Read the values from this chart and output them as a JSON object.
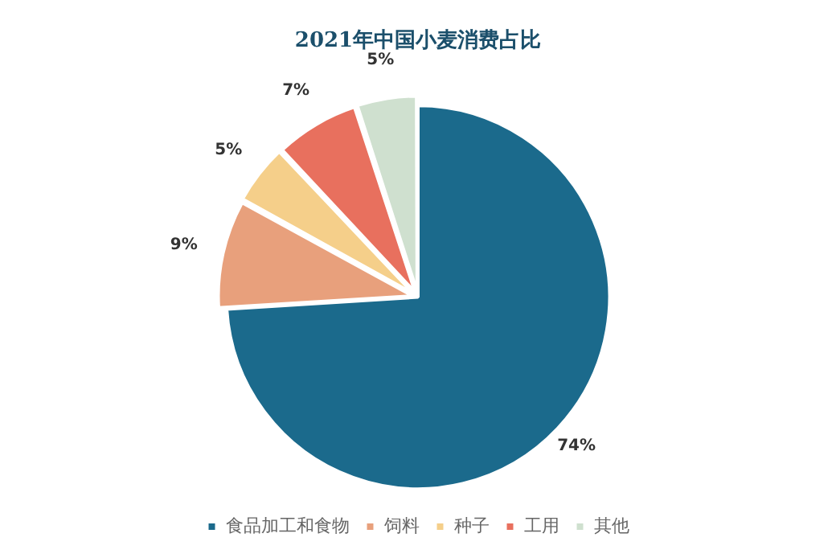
{
  "chart_data": {
    "type": "pie",
    "title": "2021年中国小麦消费占比",
    "categories": [
      "食品加工和食物",
      "饲料",
      "种子",
      "工用",
      "其他"
    ],
    "values": [
      74,
      9,
      5,
      7,
      5
    ],
    "value_labels": [
      "74%",
      "9%",
      "5%",
      "7%",
      "5%"
    ],
    "colors": [
      "#1b6a8c",
      "#e8a07c",
      "#f5cf8a",
      "#e8705e",
      "#cfe0cf"
    ],
    "legend": "bottom"
  }
}
